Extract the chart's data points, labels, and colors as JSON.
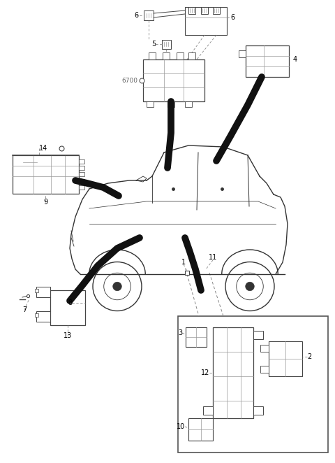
{
  "bg_color": "#ffffff",
  "fig_width": 4.8,
  "fig_height": 6.62,
  "dpi": 100,
  "gray": "#444444",
  "lgray": "#999999",
  "dashed_color": "#888888",
  "wire_color": "#111111",
  "wire_lw": 7
}
